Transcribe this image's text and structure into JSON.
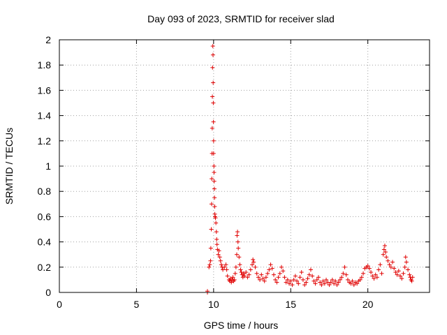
{
  "chart_data": {
    "type": "scatter",
    "title": "Day 093 of 2023, SRMTID for receiver slad",
    "xlabel": "GPS time / hours",
    "ylabel": "SRMTID / TECUs",
    "xlim": [
      0,
      24
    ],
    "ylim": [
      0,
      2
    ],
    "xticks": [
      0,
      5,
      10,
      15,
      20
    ],
    "yticks": [
      0,
      0.2,
      0.4,
      0.6,
      0.8,
      1,
      1.2,
      1.4,
      1.6,
      1.8,
      2
    ],
    "grid": true,
    "marker": "+",
    "marker_color": "#e00000",
    "series": [
      {
        "name": "SRMTID",
        "points": [
          [
            9.6,
            0.0
          ],
          [
            9.6,
            0.01
          ],
          [
            9.7,
            0.2
          ],
          [
            9.75,
            0.22
          ],
          [
            9.8,
            0.25
          ],
          [
            9.82,
            0.35
          ],
          [
            9.85,
            0.5
          ],
          [
            9.87,
            0.7
          ],
          [
            9.88,
            0.9
          ],
          [
            9.9,
            1.1
          ],
          [
            9.91,
            1.3
          ],
          [
            9.92,
            1.55
          ],
          [
            9.93,
            1.78
          ],
          [
            9.95,
            1.95
          ],
          [
            9.96,
            1.88
          ],
          [
            9.97,
            1.66
          ],
          [
            9.98,
            1.5
          ],
          [
            9.99,
            1.35
          ],
          [
            10.0,
            1.2
          ],
          [
            10.0,
            1.1
          ],
          [
            10.02,
            1.0
          ],
          [
            10.03,
            0.95
          ],
          [
            10.04,
            0.88
          ],
          [
            10.05,
            0.82
          ],
          [
            10.06,
            0.75
          ],
          [
            10.07,
            0.68
          ],
          [
            10.08,
            0.62
          ],
          [
            10.1,
            0.6
          ],
          [
            10.12,
            0.59
          ],
          [
            10.15,
            0.55
          ],
          [
            10.18,
            0.48
          ],
          [
            10.2,
            0.42
          ],
          [
            10.22,
            0.38
          ],
          [
            10.25,
            0.34
          ],
          [
            10.3,
            0.3
          ],
          [
            10.35,
            0.33
          ],
          [
            10.4,
            0.28
          ],
          [
            10.45,
            0.25
          ],
          [
            10.5,
            0.22
          ],
          [
            10.55,
            0.2
          ],
          [
            10.6,
            0.18
          ],
          [
            10.7,
            0.2
          ],
          [
            10.8,
            0.22
          ],
          [
            10.85,
            0.18
          ],
          [
            10.9,
            0.13
          ],
          [
            11.0,
            0.1
          ],
          [
            11.05,
            0.09
          ],
          [
            11.1,
            0.11
          ],
          [
            11.15,
            0.08
          ],
          [
            11.2,
            0.1
          ],
          [
            11.25,
            0.12
          ],
          [
            11.3,
            0.09
          ],
          [
            11.35,
            0.1
          ],
          [
            11.4,
            0.15
          ],
          [
            11.45,
            0.2
          ],
          [
            11.5,
            0.3
          ],
          [
            11.52,
            0.45
          ],
          [
            11.55,
            0.48
          ],
          [
            11.58,
            0.4
          ],
          [
            11.6,
            0.35
          ],
          [
            11.65,
            0.28
          ],
          [
            11.7,
            0.22
          ],
          [
            11.75,
            0.18
          ],
          [
            11.8,
            0.16
          ],
          [
            11.85,
            0.14
          ],
          [
            11.9,
            0.12
          ],
          [
            11.95,
            0.15
          ],
          [
            12.0,
            0.13
          ],
          [
            12.1,
            0.16
          ],
          [
            12.2,
            0.12
          ],
          [
            12.3,
            0.14
          ],
          [
            12.4,
            0.18
          ],
          [
            12.5,
            0.22
          ],
          [
            12.55,
            0.26
          ],
          [
            12.6,
            0.24
          ],
          [
            12.7,
            0.2
          ],
          [
            12.8,
            0.15
          ],
          [
            12.9,
            0.12
          ],
          [
            13.0,
            0.1
          ],
          [
            13.1,
            0.14
          ],
          [
            13.2,
            0.11
          ],
          [
            13.3,
            0.09
          ],
          [
            13.4,
            0.12
          ],
          [
            13.5,
            0.15
          ],
          [
            13.6,
            0.18
          ],
          [
            13.7,
            0.22
          ],
          [
            13.8,
            0.19
          ],
          [
            13.9,
            0.14
          ],
          [
            14.0,
            0.1
          ],
          [
            14.1,
            0.08
          ],
          [
            14.2,
            0.12
          ],
          [
            14.3,
            0.15
          ],
          [
            14.4,
            0.2
          ],
          [
            14.5,
            0.17
          ],
          [
            14.6,
            0.12
          ],
          [
            14.7,
            0.08
          ],
          [
            14.8,
            0.1
          ],
          [
            14.9,
            0.07
          ],
          [
            15.0,
            0.09
          ],
          [
            15.1,
            0.06
          ],
          [
            15.2,
            0.1
          ],
          [
            15.3,
            0.13
          ],
          [
            15.4,
            0.09
          ],
          [
            15.5,
            0.07
          ],
          [
            15.6,
            0.12
          ],
          [
            15.7,
            0.16
          ],
          [
            15.8,
            0.1
          ],
          [
            15.9,
            0.06
          ],
          [
            16.0,
            0.08
          ],
          [
            16.1,
            0.11
          ],
          [
            16.2,
            0.14
          ],
          [
            16.3,
            0.18
          ],
          [
            16.4,
            0.13
          ],
          [
            16.5,
            0.09
          ],
          [
            16.6,
            0.07
          ],
          [
            16.7,
            0.1
          ],
          [
            16.8,
            0.12
          ],
          [
            16.9,
            0.08
          ],
          [
            17.0,
            0.06
          ],
          [
            17.1,
            0.09
          ],
          [
            17.2,
            0.07
          ],
          [
            17.3,
            0.1
          ],
          [
            17.4,
            0.08
          ],
          [
            17.5,
            0.06
          ],
          [
            17.6,
            0.08
          ],
          [
            17.7,
            0.1
          ],
          [
            17.8,
            0.07
          ],
          [
            17.9,
            0.09
          ],
          [
            18.0,
            0.06
          ],
          [
            18.1,
            0.08
          ],
          [
            18.2,
            0.1
          ],
          [
            18.3,
            0.12
          ],
          [
            18.4,
            0.15
          ],
          [
            18.5,
            0.2
          ],
          [
            18.6,
            0.14
          ],
          [
            18.7,
            0.1
          ],
          [
            18.8,
            0.08
          ],
          [
            18.9,
            0.07
          ],
          [
            19.0,
            0.09
          ],
          [
            19.1,
            0.06
          ],
          [
            19.2,
            0.08
          ],
          [
            19.3,
            0.07
          ],
          [
            19.4,
            0.09
          ],
          [
            19.5,
            0.1
          ],
          [
            19.6,
            0.12
          ],
          [
            19.7,
            0.15
          ],
          [
            19.8,
            0.19
          ],
          [
            19.9,
            0.2
          ],
          [
            20.0,
            0.21
          ],
          [
            20.1,
            0.19
          ],
          [
            20.2,
            0.16
          ],
          [
            20.3,
            0.13
          ],
          [
            20.4,
            0.11
          ],
          [
            20.5,
            0.14
          ],
          [
            20.6,
            0.12
          ],
          [
            20.7,
            0.18
          ],
          [
            20.8,
            0.22
          ],
          [
            20.9,
            0.15
          ],
          [
            21.0,
            0.3
          ],
          [
            21.05,
            0.34
          ],
          [
            21.1,
            0.37
          ],
          [
            21.15,
            0.32
          ],
          [
            21.2,
            0.28
          ],
          [
            21.3,
            0.25
          ],
          [
            21.4,
            0.22
          ],
          [
            21.5,
            0.2
          ],
          [
            21.6,
            0.24
          ],
          [
            21.7,
            0.19
          ],
          [
            21.8,
            0.16
          ],
          [
            21.9,
            0.14
          ],
          [
            22.0,
            0.17
          ],
          [
            22.1,
            0.13
          ],
          [
            22.2,
            0.11
          ],
          [
            22.3,
            0.15
          ],
          [
            22.4,
            0.2
          ],
          [
            22.45,
            0.28
          ],
          [
            22.5,
            0.24
          ],
          [
            22.6,
            0.18
          ],
          [
            22.7,
            0.14
          ],
          [
            22.75,
            0.12
          ],
          [
            22.8,
            0.1
          ],
          [
            22.85,
            0.09
          ],
          [
            22.9,
            0.12
          ]
        ]
      }
    ]
  }
}
